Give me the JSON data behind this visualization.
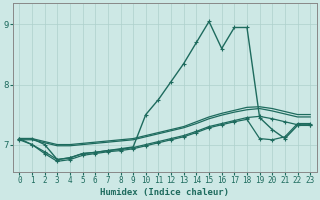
{
  "xlabel": "Humidex (Indice chaleur)",
  "ylabel": "",
  "xlim": [
    -0.5,
    23.5
  ],
  "ylim": [
    6.55,
    9.35
  ],
  "xticks": [
    0,
    1,
    2,
    3,
    4,
    5,
    6,
    7,
    8,
    9,
    10,
    11,
    12,
    13,
    14,
    15,
    16,
    17,
    18,
    19,
    20,
    21,
    22,
    23
  ],
  "yticks": [
    7,
    8,
    9
  ],
  "bg_color": "#cde8e5",
  "grid_color": "#aed0cc",
  "line_color": "#1e6b5e",
  "lines": [
    {
      "x": [
        0,
        1,
        2,
        3,
        4,
        5,
        6,
        7,
        8,
        9,
        10,
        11,
        12,
        13,
        14,
        15,
        16,
        17,
        18,
        19,
        20,
        21,
        22,
        23
      ],
      "y": [
        7.1,
        7.1,
        7.0,
        6.75,
        6.78,
        6.85,
        6.87,
        6.9,
        6.93,
        6.96,
        7.5,
        7.75,
        8.05,
        8.35,
        8.7,
        9.05,
        8.6,
        8.95,
        8.95,
        7.45,
        7.25,
        7.1,
        7.32,
        7.32
      ],
      "marker": "+",
      "ms": 3,
      "lw": 1.0
    },
    {
      "x": [
        0,
        1,
        2,
        3,
        4,
        5,
        6,
        7,
        8,
        9,
        10,
        11,
        12,
        13,
        14,
        15,
        16,
        17,
        18,
        19,
        20,
        21,
        22,
        23
      ],
      "y": [
        7.1,
        7.1,
        7.05,
        7.0,
        7.0,
        7.02,
        7.04,
        7.06,
        7.08,
        7.1,
        7.15,
        7.2,
        7.25,
        7.3,
        7.38,
        7.46,
        7.52,
        7.57,
        7.62,
        7.63,
        7.6,
        7.55,
        7.5,
        7.5
      ],
      "marker": null,
      "ms": 0,
      "lw": 0.9
    },
    {
      "x": [
        0,
        1,
        2,
        3,
        4,
        5,
        6,
        7,
        8,
        9,
        10,
        11,
        12,
        13,
        14,
        15,
        16,
        17,
        18,
        19,
        20,
        21,
        22,
        23
      ],
      "y": [
        7.08,
        7.08,
        7.03,
        6.98,
        6.98,
        7.0,
        7.02,
        7.04,
        7.06,
        7.08,
        7.13,
        7.18,
        7.23,
        7.28,
        7.35,
        7.43,
        7.49,
        7.54,
        7.58,
        7.6,
        7.56,
        7.51,
        7.46,
        7.46
      ],
      "marker": null,
      "ms": 0,
      "lw": 0.9
    },
    {
      "x": [
        0,
        1,
        2,
        3,
        4,
        5,
        6,
        7,
        8,
        9,
        10,
        11,
        12,
        13,
        14,
        15,
        16,
        17,
        18,
        19,
        20,
        21,
        22,
        23
      ],
      "y": [
        7.1,
        7.0,
        6.88,
        6.75,
        6.78,
        6.85,
        6.87,
        6.9,
        6.92,
        6.95,
        7.0,
        7.05,
        7.1,
        7.15,
        7.22,
        7.3,
        7.35,
        7.4,
        7.45,
        7.47,
        7.43,
        7.38,
        7.33,
        7.33
      ],
      "marker": "+",
      "ms": 3,
      "lw": 0.9
    },
    {
      "x": [
        0,
        1,
        2,
        3,
        4,
        5,
        6,
        7,
        8,
        9,
        10,
        11,
        12,
        13,
        14,
        15,
        16,
        17,
        18,
        19,
        20,
        21,
        22,
        23
      ],
      "y": [
        7.08,
        7.0,
        6.85,
        6.72,
        6.75,
        6.82,
        6.85,
        6.88,
        6.9,
        6.93,
        6.98,
        7.03,
        7.08,
        7.13,
        7.2,
        7.28,
        7.33,
        7.38,
        7.42,
        7.1,
        7.08,
        7.13,
        7.35,
        7.35
      ],
      "marker": "+",
      "ms": 3,
      "lw": 0.9
    }
  ]
}
